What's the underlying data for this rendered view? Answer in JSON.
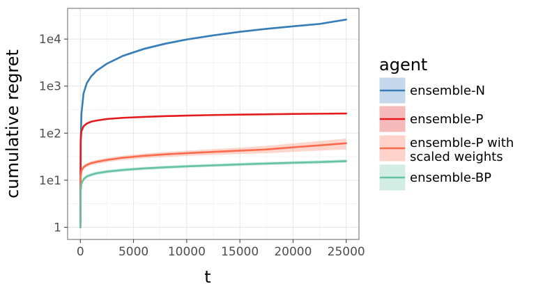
{
  "chart_data": {
    "type": "line",
    "xlabel": "t",
    "ylabel": "cumulative regret",
    "xlim": [
      -1200,
      26200
    ],
    "ylim": [
      0.55,
      45000
    ],
    "y_scale": "log10",
    "x_ticks": [
      0,
      5000,
      10000,
      15000,
      20000,
      25000
    ],
    "x_tick_labels": [
      "0",
      "5000",
      "10000",
      "15000",
      "20000",
      "25000"
    ],
    "y_ticks": [
      1,
      10,
      100,
      1000,
      10000
    ],
    "y_tick_labels": [
      "1",
      "1e1",
      "1e2",
      "1e3",
      "1e4"
    ],
    "grid": true,
    "legend": {
      "title": "agent",
      "position": "right"
    },
    "series": [
      {
        "name": "ensemble-N",
        "color": "#377eb8",
        "x": [
          1,
          30,
          100,
          300,
          600,
          1000,
          1500,
          2500,
          4000,
          6000,
          8000,
          10000,
          12500,
          15000,
          17500,
          20000,
          22500,
          25000
        ],
        "y": [
          1,
          60,
          260,
          700,
          1150,
          1600,
          2100,
          3000,
          4400,
          6200,
          8000,
          9800,
          12000,
          14300,
          16500,
          18700,
          21000,
          26000
        ],
        "lower": [
          1,
          55,
          240,
          650,
          1080,
          1500,
          1980,
          2850,
          4150,
          5850,
          7550,
          9300,
          11400,
          13600,
          15700,
          17800,
          20000,
          24700
        ],
        "upper": [
          1,
          66,
          280,
          750,
          1230,
          1700,
          2230,
          3150,
          4650,
          6550,
          8450,
          10300,
          12600,
          15000,
          17300,
          19600,
          22000,
          27300
        ]
      },
      {
        "name": "ensemble-P",
        "color": "#e41a1c",
        "x": [
          1,
          30,
          100,
          300,
          600,
          1000,
          1500,
          2500,
          4000,
          6000,
          8000,
          10000,
          12500,
          15000,
          17500,
          20000,
          22500,
          25000
        ],
        "y": [
          1,
          70,
          110,
          140,
          160,
          175,
          185,
          200,
          212,
          222,
          230,
          236,
          243,
          248,
          252,
          256,
          259,
          262
        ],
        "lower": [
          1,
          67,
          106,
          136,
          156,
          170,
          180,
          195,
          207,
          217,
          225,
          231,
          238,
          243,
          247,
          251,
          254,
          257
        ],
        "upper": [
          1,
          73,
          114,
          145,
          165,
          180,
          190,
          206,
          217,
          227,
          235,
          241,
          248,
          253,
          257,
          261,
          264,
          267
        ]
      },
      {
        "name": "ensemble-P with\nscaled weights",
        "color": "#fb6a4a",
        "x": [
          1,
          30,
          100,
          300,
          600,
          1000,
          1500,
          2500,
          4000,
          6000,
          8000,
          10000,
          12500,
          15000,
          17500,
          20000,
          22500,
          25000
        ],
        "y": [
          1,
          12,
          16,
          19,
          21,
          23,
          24.5,
          27,
          30,
          33,
          35.5,
          37.5,
          40,
          42.5,
          45,
          50,
          55,
          61
        ],
        "lower": [
          1,
          11,
          14.5,
          17.2,
          19,
          20.8,
          22,
          24.3,
          26.8,
          29.3,
          31.2,
          32.8,
          34.5,
          36,
          37.5,
          40,
          42.5,
          45
        ],
        "upper": [
          1,
          13.2,
          17.6,
          21,
          23.2,
          25.3,
          27,
          29.8,
          33.3,
          36.8,
          39.8,
          42.3,
          45.8,
          49.5,
          53.5,
          60.5,
          68,
          77
        ]
      },
      {
        "name": "ensemble-BP",
        "color": "#66c2a4",
        "x": [
          1,
          30,
          100,
          300,
          600,
          1000,
          1500,
          2500,
          4000,
          6000,
          8000,
          10000,
          12500,
          15000,
          17500,
          20000,
          22500,
          25000
        ],
        "y": [
          1,
          6,
          8.5,
          10.5,
          12,
          13,
          14,
          15.2,
          16.5,
          17.8,
          18.8,
          19.7,
          20.7,
          21.7,
          22.6,
          23.5,
          24.3,
          25.5
        ],
        "lower": [
          1,
          5.3,
          7.6,
          9.5,
          10.9,
          11.9,
          12.8,
          14,
          15.2,
          16.4,
          17.3,
          18.2,
          19.1,
          20,
          20.8,
          21.6,
          22.3,
          23.3
        ],
        "upper": [
          1,
          6.8,
          9.5,
          11.6,
          13.2,
          14.2,
          15.3,
          16.5,
          17.9,
          19.3,
          20.4,
          21.3,
          22.4,
          23.5,
          24.5,
          25.5,
          26.4,
          27.8
        ]
      }
    ]
  }
}
